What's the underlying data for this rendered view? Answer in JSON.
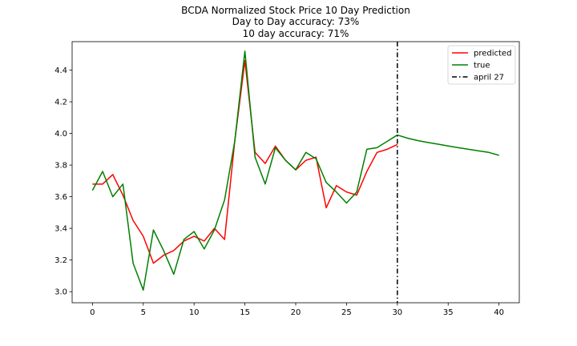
{
  "chart_data": {
    "type": "line",
    "title_lines": [
      "BCDA Normalized Stock Price 10 Day Prediction",
      "Day to Day accuracy: 73%",
      "10 day accuracy: 71%"
    ],
    "xlabel": "",
    "ylabel": "",
    "xlim": [
      -2,
      42
    ],
    "ylim": [
      2.93,
      4.58
    ],
    "x_ticks": [
      0,
      5,
      10,
      15,
      20,
      25,
      30,
      35,
      40
    ],
    "y_ticks": [
      3.0,
      3.2,
      3.4,
      3.6,
      3.8,
      4.0,
      4.2,
      4.4
    ],
    "y_tick_labels": [
      "3.0",
      "3.2",
      "3.4",
      "3.6",
      "3.8",
      "4.0",
      "4.2",
      "4.4"
    ],
    "grid": false,
    "legend_position": "top-right",
    "series": [
      {
        "name": "predicted",
        "color": "#ff0000",
        "x": [
          0,
          1,
          2,
          3,
          4,
          5,
          6,
          7,
          8,
          9,
          10,
          11,
          12,
          13,
          14,
          15,
          16,
          17,
          18,
          19,
          20,
          21,
          22,
          23,
          24,
          25,
          26,
          27,
          28,
          29,
          30
        ],
        "values": [
          3.68,
          3.68,
          3.74,
          3.61,
          3.45,
          3.35,
          3.18,
          3.23,
          3.26,
          3.32,
          3.35,
          3.32,
          3.4,
          3.33,
          3.95,
          4.46,
          3.88,
          3.81,
          3.92,
          3.83,
          3.77,
          3.83,
          3.85,
          3.53,
          3.67,
          3.63,
          3.61,
          3.76,
          3.88,
          3.9,
          3.93
        ]
      },
      {
        "name": "true",
        "color": "#008000",
        "x": [
          0,
          1,
          2,
          3,
          4,
          5,
          6,
          7,
          8,
          9,
          10,
          11,
          12,
          13,
          14,
          15,
          16,
          17,
          18,
          19,
          20,
          21,
          22,
          23,
          24,
          25,
          26,
          27,
          28,
          29,
          30,
          31,
          32,
          33,
          34,
          35,
          36,
          37,
          38,
          39,
          40
        ],
        "values": [
          3.64,
          3.76,
          3.6,
          3.68,
          3.18,
          3.01,
          3.39,
          3.26,
          3.11,
          3.33,
          3.38,
          3.27,
          3.39,
          3.58,
          3.95,
          4.52,
          3.85,
          3.68,
          3.91,
          3.83,
          3.77,
          3.88,
          3.84,
          3.69,
          3.63,
          3.56,
          3.63,
          3.9,
          3.91,
          3.95,
          3.99,
          3.97,
          3.955,
          3.943,
          3.932,
          3.921,
          3.91,
          3.9,
          3.89,
          3.88,
          3.862
        ]
      }
    ],
    "vline": {
      "name": "april 27",
      "x": 30,
      "color": "#000000",
      "style": "dashdot"
    }
  }
}
